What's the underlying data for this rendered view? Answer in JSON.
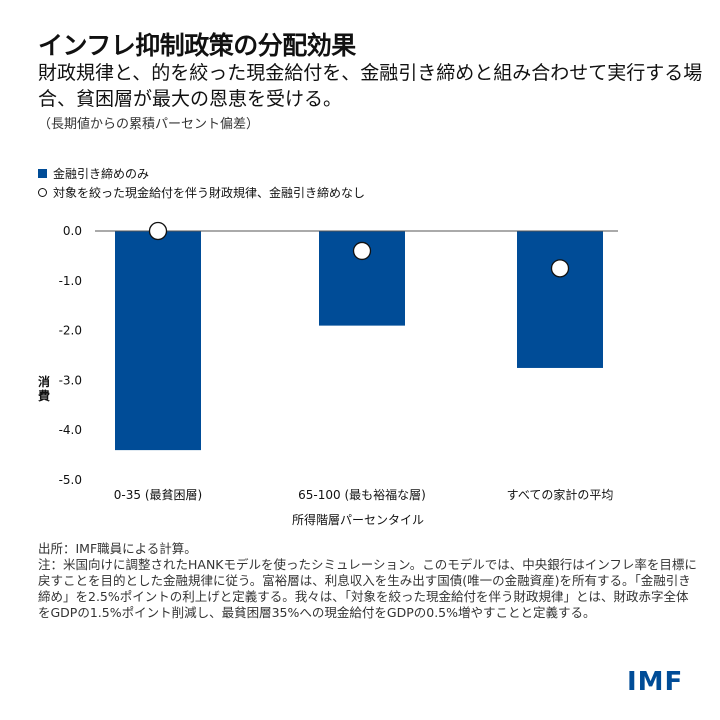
{
  "header": {
    "title": "インフレ抑制政策の分配効果",
    "subtitle": "財政規律と、的を絞った現金給付を、金融引き締めと組み合わせて実行する場合、貧困層が最大の恩恵を受ける。",
    "unit": "（長期値からの累積パーセント偏差）"
  },
  "chart_data": {
    "type": "bar",
    "categories": [
      "0-35 (最貧困層)",
      "65-100 (最も裕福な層)",
      "すべての家計の平均"
    ],
    "series": [
      {
        "name": "金融引き締めのみ",
        "kind": "bar",
        "color": "#004c97",
        "values": [
          -4.4,
          -1.9,
          -2.75
        ]
      },
      {
        "name": "対象を絞った現金給付を伴う財政規律、金融引き締めなし",
        "kind": "marker",
        "color": "#ffffff",
        "values": [
          0.0,
          -0.4,
          -0.75
        ]
      }
    ],
    "xlabel": "所得階層パーセンタイル",
    "ylabel": "消費",
    "ylim": [
      -5,
      0
    ],
    "yticks": [
      "0.0",
      "-1.0",
      "-2.0",
      "-3.0",
      "-4.0",
      "-5.0"
    ],
    "grid": false,
    "legend": "top-left"
  },
  "notes": {
    "source": "出所：IMF職員による計算。",
    "note": "注：米国向けに調整されたHANKモデルを使ったシミュレーション。このモデルでは、中央銀行はインフレ率を目標に戻すことを目的とした金融規律に従う。富裕層は、利息収入を生み出す国債(唯一の金融資産)を所有する。「金融引き締め」を2.5%ポイントの利上げと定義する。我々は、「対象を絞った現金給付を伴う財政規律」とは、財政赤字全体をGDPの1.5%ポイント削減し、最貧困層35%への現金給付をGDPの0.5%増やすことと定義する。"
  },
  "logo": "IMF"
}
